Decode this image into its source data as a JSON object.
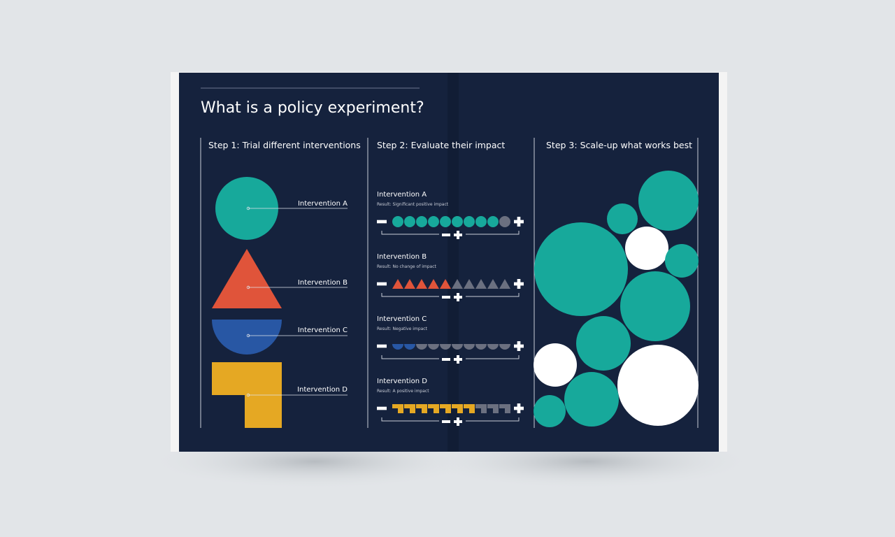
{
  "title": "What is a policy experiment?",
  "steps": [
    {
      "label": "Step 1: Trial different interventions"
    },
    {
      "label": "Step 2: Evaluate their impact"
    },
    {
      "label": "Step 3: Scale-up what works best"
    }
  ],
  "interventions": [
    {
      "name": "Intervention A",
      "result": "Result: Significant positive impact",
      "shape": "circle",
      "color": "#17a99b",
      "positive": 9,
      "total": 10
    },
    {
      "name": "Intervention B",
      "result": "Result: No change of impact",
      "shape": "triangle",
      "color": "#e0543a",
      "positive": 5,
      "total": 10
    },
    {
      "name": "Intervention C",
      "result": "Result: Negative impact",
      "shape": "semicircle",
      "color": "#2857a4",
      "positive": 2,
      "total": 10
    },
    {
      "name": "Intervention D",
      "result": "Result: A positive impact",
      "shape": "l-shape",
      "color": "#e5a823",
      "positive": 7,
      "total": 10
    }
  ],
  "colors": {
    "background": "#15223d",
    "neutral": "#6b7080",
    "teal": "#17a99b",
    "white": "#ffffff"
  }
}
